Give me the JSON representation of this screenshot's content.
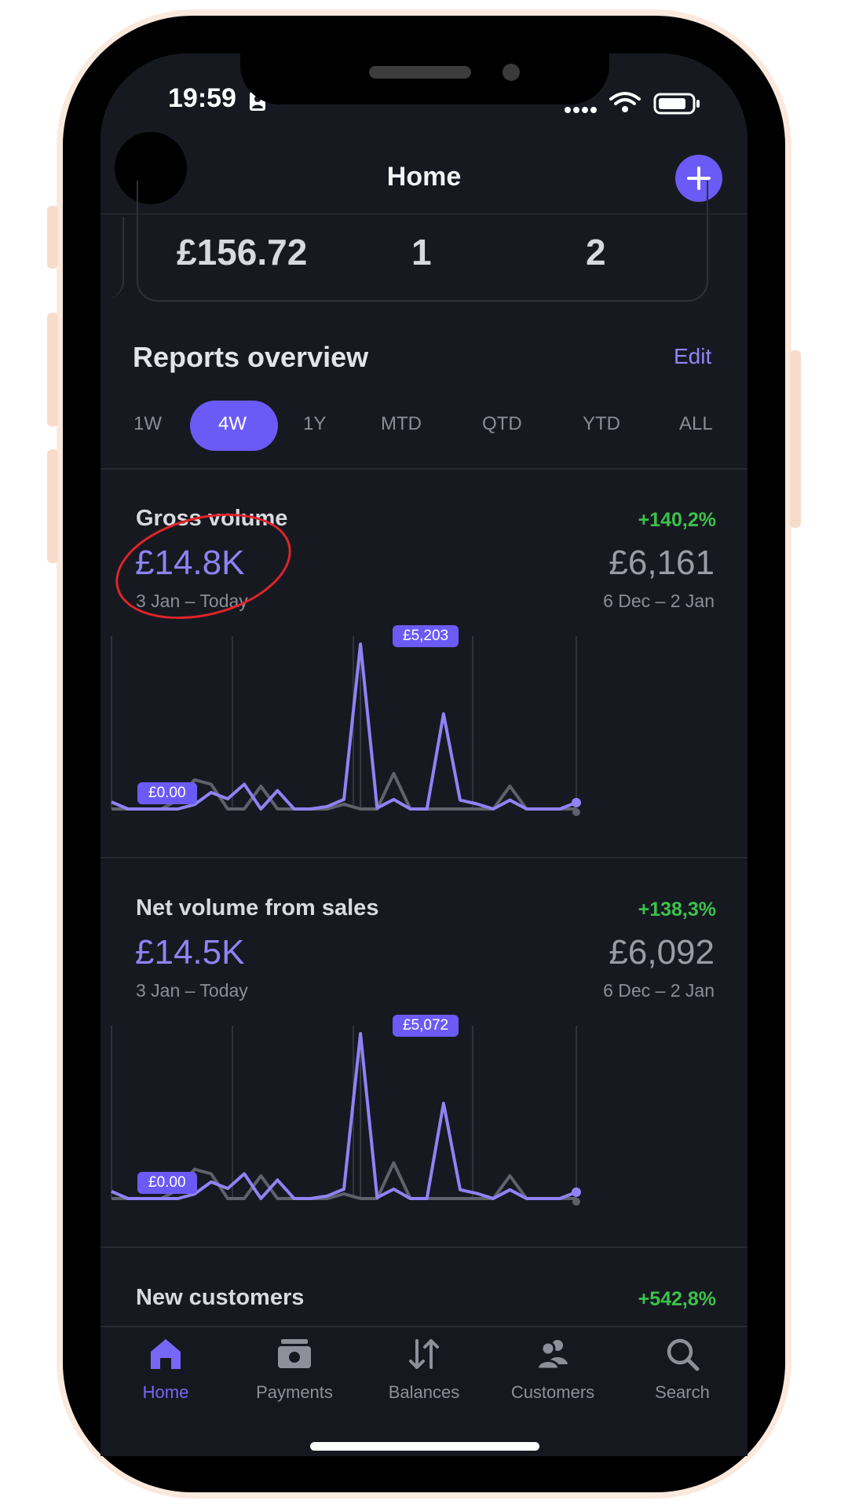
{
  "status_bar": {
    "time": "19:59"
  },
  "header": {
    "title": "Home"
  },
  "stats": [
    "£156.72",
    "1",
    "2"
  ],
  "reports": {
    "title": "Reports overview",
    "edit_label": "Edit",
    "ranges": [
      "1W",
      "4W",
      "1Y",
      "MTD",
      "QTD",
      "YTD",
      "ALL"
    ],
    "selected_range": "4W"
  },
  "metrics": [
    {
      "label": "Gross volume",
      "change": "+140,2%",
      "current_value": "£14.8K",
      "current_range": "3 Jan – Today",
      "previous_value": "£6,161",
      "previous_range": "6 Dec – 2 Jan",
      "peak_label": "£5,203",
      "zero_label": "£0.00"
    },
    {
      "label": "Net volume from sales",
      "change": "+138,3%",
      "current_value": "£14.5K",
      "current_range": "3 Jan – Today",
      "previous_value": "£6,092",
      "previous_range": "6 Dec – 2 Jan",
      "peak_label": "£5,072",
      "zero_label": "£0.00"
    },
    {
      "label": "New customers",
      "change": "+542,8%"
    }
  ],
  "chart_data": [
    {
      "type": "line",
      "ylim": [
        0,
        5203
      ],
      "series": [
        {
          "values": [
            220,
            0,
            0,
            0,
            0,
            140,
            520,
            320,
            780,
            0,
            580,
            0,
            0,
            80,
            300,
            5203,
            30,
            300,
            0,
            0,
            3000,
            280,
            160,
            0,
            280,
            0,
            0,
            0,
            200
          ]
        },
        {
          "values": [
            0,
            0,
            0,
            0,
            280,
            920,
            780,
            0,
            0,
            720,
            0,
            0,
            0,
            0,
            150,
            0,
            0,
            1120,
            0,
            0,
            0,
            0,
            0,
            0,
            720,
            0,
            0,
            0,
            0
          ]
        }
      ]
    },
    {
      "type": "line",
      "ylim": [
        0,
        5072
      ],
      "series": [
        {
          "values": [
            220,
            0,
            0,
            0,
            0,
            140,
            510,
            310,
            760,
            0,
            570,
            0,
            0,
            80,
            290,
            5072,
            30,
            290,
            0,
            0,
            2930,
            270,
            160,
            0,
            270,
            0,
            0,
            0,
            195
          ]
        },
        {
          "values": [
            0,
            0,
            0,
            0,
            270,
            900,
            760,
            0,
            0,
            700,
            0,
            0,
            0,
            0,
            145,
            0,
            0,
            1100,
            0,
            0,
            0,
            0,
            0,
            0,
            700,
            0,
            0,
            0,
            0
          ]
        }
      ]
    }
  ],
  "colors": {
    "accent": "#6b5bf6",
    "positive": "#3bc24a",
    "previous_series": "#5f626c"
  },
  "tabs": [
    {
      "label": "Home",
      "icon": "home-icon",
      "active": true
    },
    {
      "label": "Payments",
      "icon": "wallet-icon",
      "active": false
    },
    {
      "label": "Balances",
      "icon": "transfer-arrows-icon",
      "active": false
    },
    {
      "label": "Customers",
      "icon": "customers-icon",
      "active": false
    },
    {
      "label": "Search",
      "icon": "search-icon",
      "active": false
    }
  ]
}
